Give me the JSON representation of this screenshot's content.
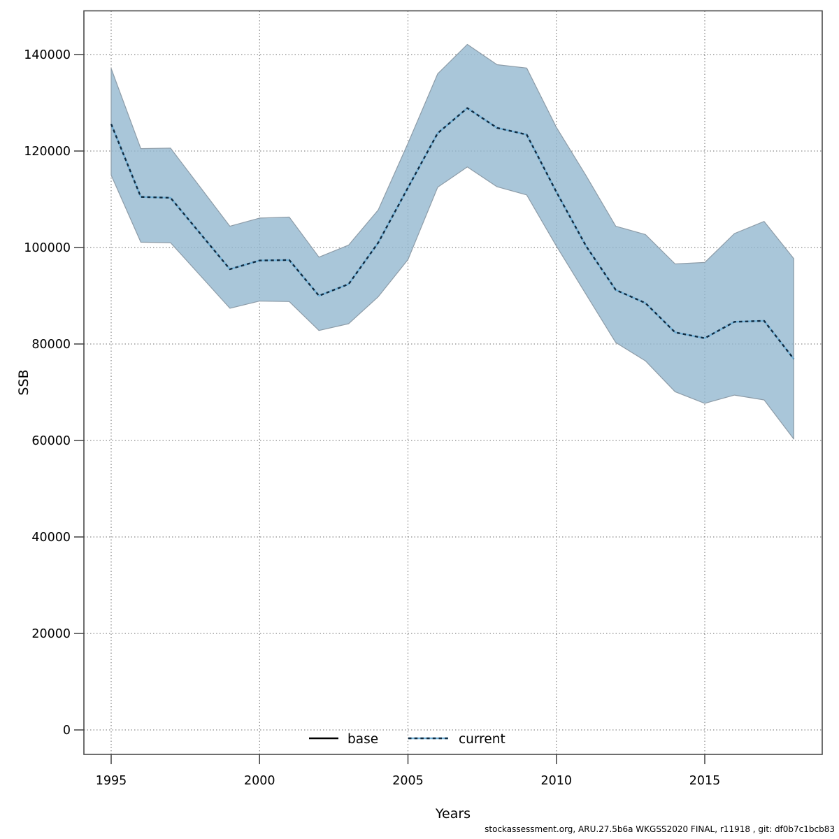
{
  "chart_data": {
    "type": "line-with-confidence-band",
    "title": "",
    "xlabel": "Years",
    "ylabel": "SSB",
    "years": [
      1995,
      1996,
      1997,
      1998,
      1999,
      2000,
      2001,
      2002,
      2003,
      2004,
      2005,
      2006,
      2007,
      2008,
      2009,
      2010,
      2011,
      2012,
      2013,
      2014,
      2015,
      2016,
      2017,
      2018
    ],
    "series": [
      {
        "name": "current",
        "values": [
          125600,
          110500,
          110300,
          102900,
          95500,
          97300,
          97400,
          90000,
          92400,
          101000,
          112400,
          123700,
          128900,
          124800,
          123400,
          111500,
          100300,
          91200,
          88500,
          82400,
          81200,
          84600,
          84800,
          76900
        ],
        "band_low": [
          115000,
          101100,
          101000,
          94200,
          87400,
          88900,
          88800,
          82800,
          84200,
          89800,
          97500,
          112500,
          116700,
          112600,
          110900,
          100300,
          90300,
          80300,
          76500,
          70100,
          67700,
          69400,
          68400,
          60300
        ],
        "band_high": [
          137100,
          120500,
          120600,
          112500,
          104400,
          106100,
          106300,
          98000,
          100500,
          107800,
          121600,
          136000,
          142100,
          137900,
          137200,
          124900,
          114900,
          104400,
          102700,
          96600,
          96900,
          102900,
          105400,
          97700
        ]
      }
    ],
    "legend": [
      {
        "label": "base",
        "line_style": "solid",
        "color": "#000000"
      },
      {
        "label": "current",
        "line_style": "dotted",
        "color": "#74b2d8",
        "dash_color": "#102c42"
      }
    ],
    "x_ticks": [
      1995,
      2000,
      2005,
      2010,
      2015
    ],
    "y_ticks": [
      0,
      20000,
      40000,
      60000,
      80000,
      100000,
      120000,
      140000
    ],
    "xlim": [
      1994.1,
      2018.9
    ],
    "ylim": [
      0,
      149000
    ],
    "grid": "dotted",
    "colors": {
      "band_fill": "#91b6ce",
      "band_fill_opacity": 0.78,
      "band_edge": "#8d9ca8",
      "grid": "#6e6e6e",
      "frame": "#4a4a4a",
      "tick": "#404040"
    },
    "footer": "stockassessment.org, ARU.27.5b6a WKGSS2020 FINAL, r11918 , git: df0b7c1bcb83"
  }
}
